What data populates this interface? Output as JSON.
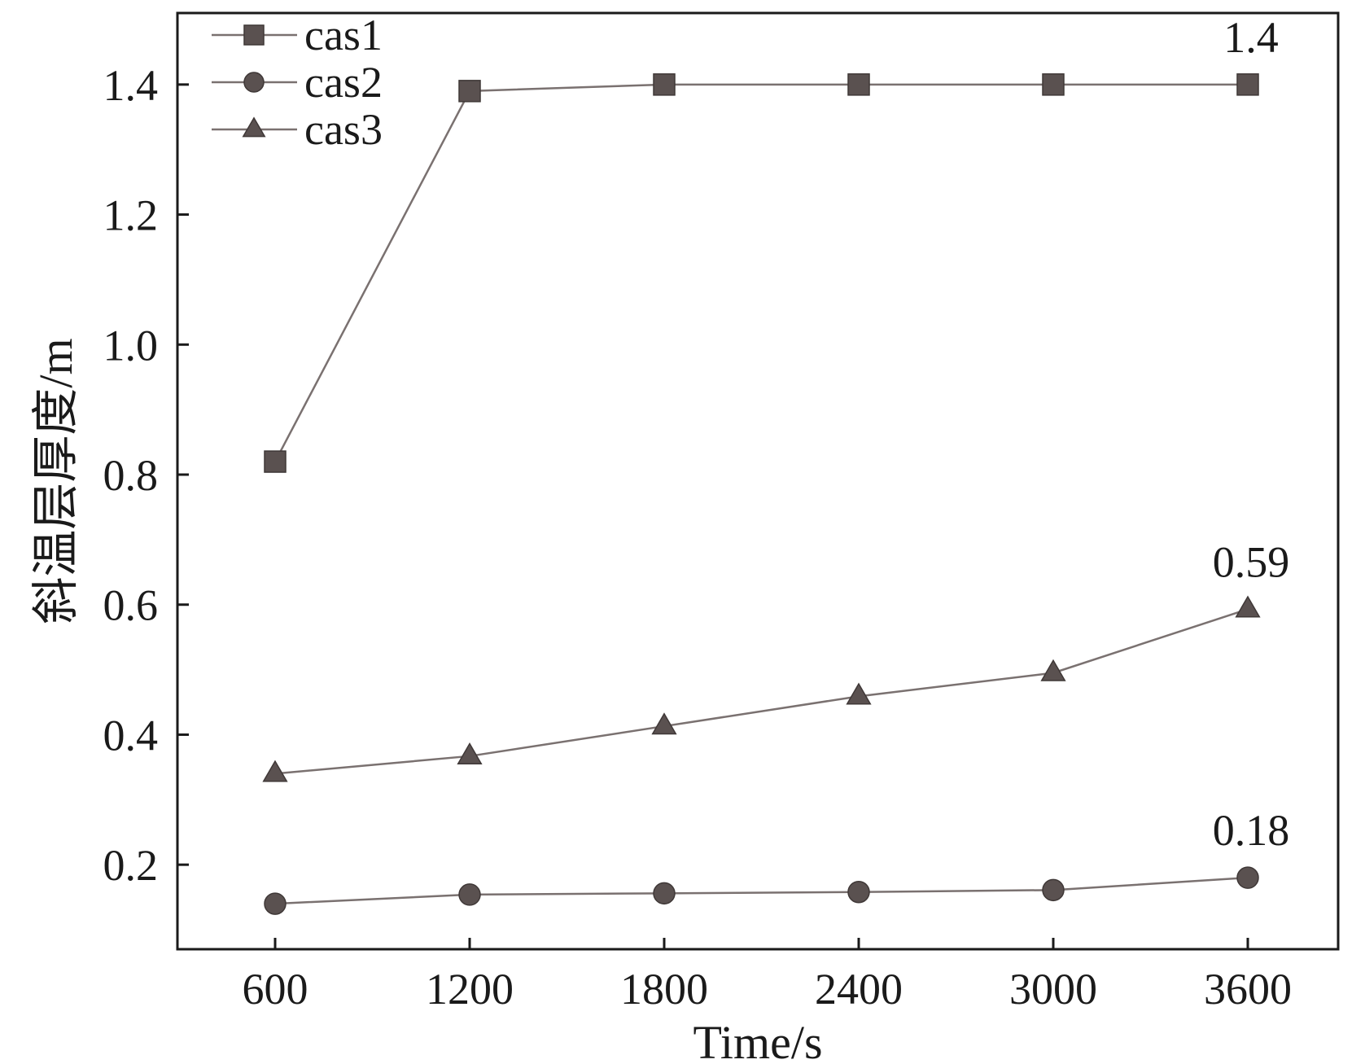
{
  "chart_data": {
    "type": "line",
    "title": "",
    "xlabel": "Time/s",
    "ylabel": "斜温层厚度/m",
    "x": [
      600,
      1200,
      1800,
      2400,
      3000,
      3600
    ],
    "xticks": [
      "600",
      "1200",
      "1800",
      "2400",
      "3000",
      "3600"
    ],
    "yticks": [
      "0.2",
      "0.4",
      "0.6",
      "0.8",
      "1.0",
      "1.2",
      "1.4"
    ],
    "ylim": [
      0.07,
      1.51
    ],
    "grid": false,
    "legend_position": "top-left",
    "series": [
      {
        "name": "cas1",
        "marker": "square",
        "values": [
          0.82,
          1.39,
          1.4,
          1.4,
          1.4,
          1.4
        ]
      },
      {
        "name": "cas2",
        "marker": "circle",
        "values": [
          0.14,
          0.154,
          0.156,
          0.158,
          0.161,
          0.18
        ]
      },
      {
        "name": "cas3",
        "marker": "triangle",
        "values": [
          0.34,
          0.367,
          0.413,
          0.459,
          0.495,
          0.593
        ]
      }
    ],
    "annotations": [
      {
        "text": "1.4",
        "x": 3600,
        "y": 1.4
      },
      {
        "text": "0.59",
        "x": 3600,
        "y": 0.593
      },
      {
        "text": "0.18",
        "x": 3600,
        "y": 0.18
      }
    ],
    "colors": {
      "marker": "#5a5150",
      "line": "#7a7170",
      "axis": "#1a1a1a"
    }
  }
}
